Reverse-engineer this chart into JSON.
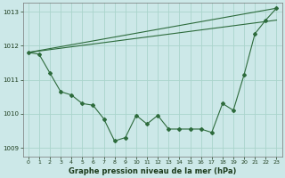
{
  "background_color": "#cce8e8",
  "grid_color": "#aad4cc",
  "line_color": "#2d6b3c",
  "title": "Graphe pression niveau de la mer (hPa)",
  "xlim": [
    -0.5,
    23.5
  ],
  "ylim": [
    1008.75,
    1013.25
  ],
  "yticks": [
    1009,
    1010,
    1011,
    1012,
    1013
  ],
  "xticks": [
    0,
    1,
    2,
    3,
    4,
    5,
    6,
    7,
    8,
    9,
    10,
    11,
    12,
    13,
    14,
    15,
    16,
    17,
    18,
    19,
    20,
    21,
    22,
    23
  ],
  "line1_straight": {
    "x": [
      0,
      23
    ],
    "y": [
      1011.8,
      1012.75
    ]
  },
  "line2_straight": {
    "x": [
      0,
      23
    ],
    "y": [
      1011.8,
      1013.1
    ]
  },
  "line3_detail": {
    "x": [
      0,
      1,
      2,
      3,
      4,
      5,
      6,
      7,
      8,
      9,
      10,
      11,
      12,
      13,
      14,
      15,
      16,
      17,
      18,
      19,
      20,
      21,
      22,
      23
    ],
    "y": [
      1011.8,
      1011.75,
      1011.2,
      1010.65,
      1010.55,
      1010.3,
      1010.25,
      1009.85,
      1009.2,
      1009.3,
      1009.95,
      1009.7,
      1009.95,
      1009.55,
      1009.55,
      1009.55,
      1009.55,
      1009.45,
      1010.3,
      1010.1,
      1011.15,
      1012.35,
      1012.75,
      1013.1
    ]
  }
}
